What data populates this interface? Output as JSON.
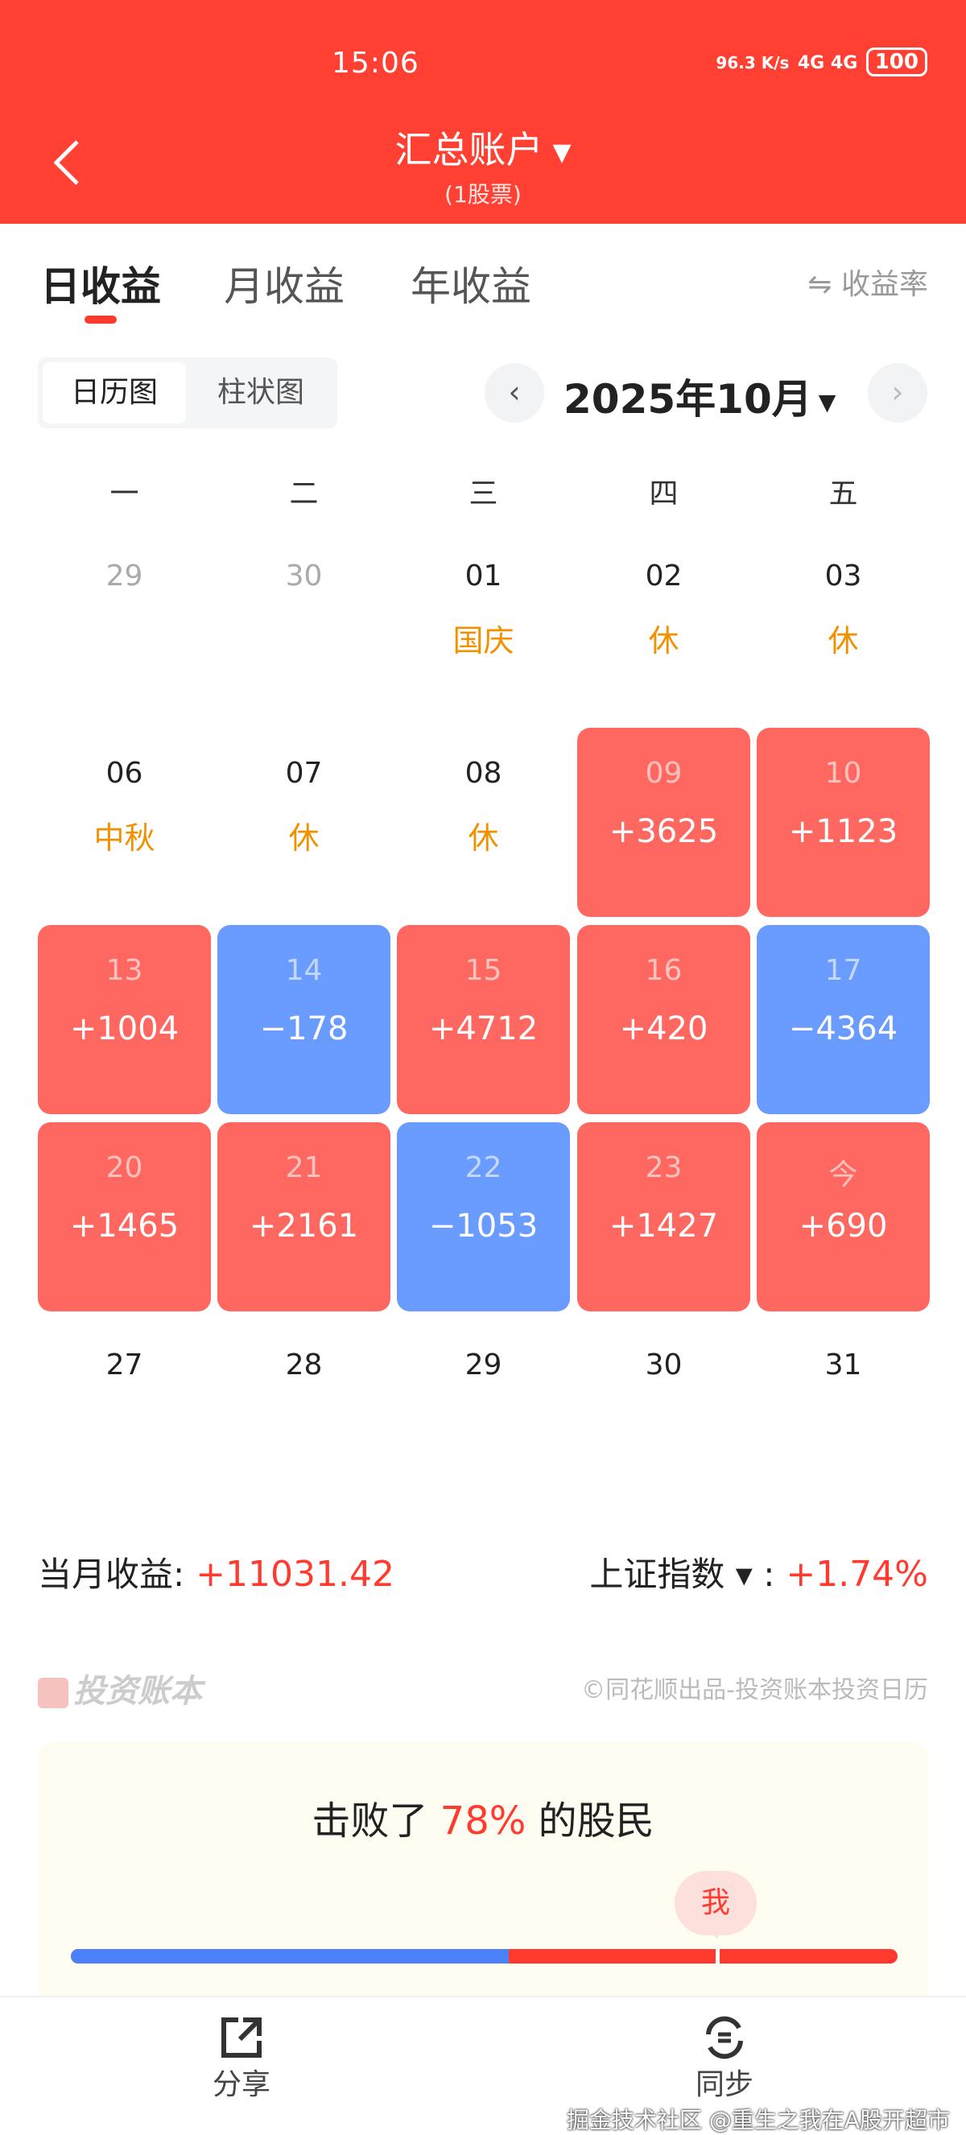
{
  "status_bar": {
    "time": "15:06",
    "network_speed": "96.3 K/s",
    "signal": "4G 4G",
    "battery": "100"
  },
  "header": {
    "title": "汇总账户",
    "subtitle": "(1股票)"
  },
  "tabs": [
    {
      "label": "日收益",
      "active": true
    },
    {
      "label": "月收益"
    },
    {
      "label": "年收益"
    }
  ],
  "rate_toggle": {
    "icon": "swap-icon",
    "label": "⇋ 收益率"
  },
  "view_toggle": [
    {
      "label": "日历图",
      "active": true
    },
    {
      "label": "柱状图"
    }
  ],
  "month_nav": {
    "label": "2025年10月"
  },
  "weekdays": [
    "一",
    "二",
    "三",
    "四",
    "五"
  ],
  "calendar": [
    {
      "date": "29",
      "type": "prev"
    },
    {
      "date": "30",
      "type": "prev"
    },
    {
      "date": "01",
      "note": "国庆",
      "type": "hol"
    },
    {
      "date": "02",
      "note": "休",
      "type": "hol"
    },
    {
      "date": "03",
      "note": "休",
      "type": "hol"
    },
    {
      "date": "06",
      "note": "中秋",
      "type": "hol"
    },
    {
      "date": "07",
      "note": "休",
      "type": "hol"
    },
    {
      "date": "08",
      "note": "休",
      "type": "hol"
    },
    {
      "date": "09",
      "value": "+3625",
      "type": "up"
    },
    {
      "date": "10",
      "value": "+1123",
      "type": "up"
    },
    {
      "date": "13",
      "value": "+1004",
      "type": "up"
    },
    {
      "date": "14",
      "value": "−178",
      "type": "down"
    },
    {
      "date": "15",
      "value": "+4712",
      "type": "up"
    },
    {
      "date": "16",
      "value": "+420",
      "type": "up"
    },
    {
      "date": "17",
      "value": "−4364",
      "type": "down"
    },
    {
      "date": "20",
      "value": "+1465",
      "type": "up"
    },
    {
      "date": "21",
      "value": "+2161",
      "type": "up"
    },
    {
      "date": "22",
      "value": "−1053",
      "type": "down"
    },
    {
      "date": "23",
      "value": "+1427",
      "type": "up"
    },
    {
      "date": "今",
      "value": "+690",
      "type": "up"
    },
    {
      "date": "27",
      "type": "future"
    },
    {
      "date": "28",
      "type": "future"
    },
    {
      "date": "29",
      "type": "future"
    },
    {
      "date": "30",
      "type": "future"
    },
    {
      "date": "31",
      "type": "future"
    }
  ],
  "summary": {
    "month_label": "当月收益:",
    "month_value": "+11031.42",
    "index_label": "上证指数 ▾ :",
    "index_value": "+1.74%"
  },
  "brand": {
    "logo": "投资账本",
    "copyright": "©同花顺出品-投资账本投资日历"
  },
  "ranking": {
    "prefix": "击败了 ",
    "percent": "78%",
    "suffix": " 的股民",
    "me_label": "我",
    "beat_fraction": 0.78,
    "blue_fraction": 0.53
  },
  "bottom_bar": [
    {
      "label": "分享",
      "icon": "share-icon"
    },
    {
      "label": "同步",
      "icon": "sync-icon"
    }
  ],
  "watermark": "掘金技术社区 @重生之我在A股开超市",
  "colors": {
    "header": "#FF4033",
    "gain": "#FF6860",
    "loss": "#6A9BFF",
    "accent": "#FF3B30"
  }
}
